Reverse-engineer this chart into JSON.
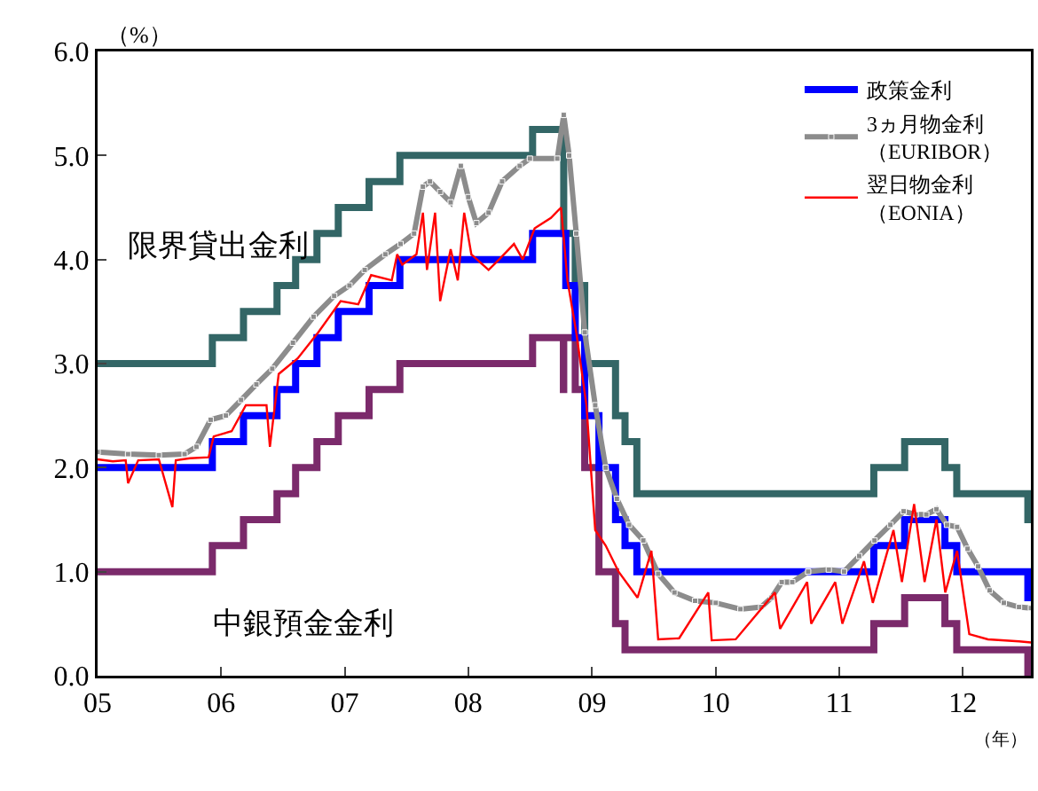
{
  "chart_data": {
    "type": "line",
    "ylabel": "（%）",
    "xlabel": "（年）",
    "xlim": [
      "2005-01-01",
      "2012-07-20"
    ],
    "xticks": [
      {
        "value": "2005-01-01",
        "label": "05"
      },
      {
        "value": "2006-01-01",
        "label": "06"
      },
      {
        "value": "2007-01-01",
        "label": "07"
      },
      {
        "value": "2008-01-01",
        "label": "08"
      },
      {
        "value": "2009-01-01",
        "label": "09"
      },
      {
        "value": "2010-01-01",
        "label": "10"
      },
      {
        "value": "2011-01-01",
        "label": "11"
      },
      {
        "value": "2012-01-01",
        "label": "12"
      }
    ],
    "ylim": [
      0,
      6
    ],
    "yticks": [
      {
        "value": 0,
        "label": "0.0"
      },
      {
        "value": 1,
        "label": "1.0"
      },
      {
        "value": 2,
        "label": "2.0"
      },
      {
        "value": 3,
        "label": "3.0"
      },
      {
        "value": 4,
        "label": "4.0"
      },
      {
        "value": 5,
        "label": "5.0"
      },
      {
        "value": 6,
        "label": "6.0"
      }
    ],
    "grid": false,
    "legend": "top right",
    "line_style": "solid",
    "series": [
      {
        "name": "政策金利",
        "type": "step",
        "color": "#0000ff",
        "x": [
          "2005-01-01",
          "2005-12-06",
          "2006-03-08",
          "2006-06-15",
          "2006-08-09",
          "2006-10-11",
          "2006-12-13",
          "2007-03-14",
          "2007-06-13",
          "2008-07-09",
          "2008-10-15",
          "2008-11-12",
          "2008-12-10",
          "2009-01-21",
          "2009-03-11",
          "2009-04-08",
          "2009-05-13",
          "2011-04-13",
          "2011-07-13",
          "2011-11-09",
          "2011-12-14",
          "2012-07-11",
          "2012-07-20"
        ],
        "values": [
          2.0,
          2.25,
          2.5,
          2.75,
          3.0,
          3.25,
          3.5,
          3.75,
          4.0,
          4.25,
          3.75,
          3.25,
          2.5,
          2.0,
          1.5,
          1.25,
          1.0,
          1.25,
          1.5,
          1.25,
          1.0,
          0.75,
          0.75
        ]
      },
      {
        "name": "3ヵ月物金利（EURIBOR）",
        "type": "line",
        "marker": "square",
        "color": "#8c8c8c",
        "x": [
          "2005-01-01",
          "2005-04-01",
          "2005-07-01",
          "2005-09-15",
          "2005-10-20",
          "2005-12-01",
          "2006-01-15",
          "2006-03-01",
          "2006-04-15",
          "2006-06-01",
          "2006-08-01",
          "2006-10-01",
          "2006-12-01",
          "2007-01-15",
          "2007-03-01",
          "2007-05-01",
          "2007-06-15",
          "2007-07-25",
          "2007-08-20",
          "2007-09-10",
          "2007-10-10",
          "2007-11-10",
          "2007-12-10",
          "2008-01-01",
          "2008-01-25",
          "2008-03-01",
          "2008-04-10",
          "2008-06-01",
          "2008-07-01",
          "2008-09-20",
          "2008-10-09",
          "2008-10-25",
          "2008-11-15",
          "2008-12-10",
          "2009-01-10",
          "2009-02-10",
          "2009-03-15",
          "2009-04-20",
          "2009-06-01",
          "2009-07-15",
          "2009-09-01",
          "2009-11-01",
          "2010-01-01",
          "2010-03-15",
          "2010-05-15",
          "2010-06-15",
          "2010-07-15",
          "2010-08-15",
          "2010-10-01",
          "2010-12-01",
          "2011-01-15",
          "2011-03-01",
          "2011-04-15",
          "2011-06-01",
          "2011-07-10",
          "2011-08-15",
          "2011-09-15",
          "2011-10-15",
          "2011-11-15",
          "2011-12-15",
          "2012-01-15",
          "2012-02-15",
          "2012-03-20",
          "2012-05-01",
          "2012-06-15",
          "2012-07-20"
        ],
        "values": [
          2.15,
          2.13,
          2.12,
          2.13,
          2.2,
          2.46,
          2.5,
          2.65,
          2.8,
          2.95,
          3.2,
          3.45,
          3.65,
          3.75,
          3.9,
          4.05,
          4.15,
          4.25,
          4.7,
          4.75,
          4.65,
          4.55,
          4.9,
          4.6,
          4.35,
          4.45,
          4.75,
          4.9,
          4.97,
          4.97,
          5.39,
          5.0,
          4.25,
          3.3,
          2.6,
          2.0,
          1.7,
          1.45,
          1.3,
          0.98,
          0.8,
          0.72,
          0.7,
          0.64,
          0.66,
          0.75,
          0.9,
          0.9,
          1.0,
          1.02,
          1.0,
          1.15,
          1.3,
          1.45,
          1.58,
          1.55,
          1.55,
          1.6,
          1.45,
          1.43,
          1.22,
          1.05,
          0.82,
          0.7,
          0.66,
          0.65
        ]
      },
      {
        "name": "翌日物金利（EONIA）",
        "type": "line",
        "color": "#ff0000",
        "x": [
          "2005-01-01",
          "2005-02-15",
          "2005-03-25",
          "2005-04-01",
          "2005-05-01",
          "2005-07-01",
          "2005-08-10",
          "2005-08-20",
          "2005-10-01",
          "2005-11-25",
          "2005-12-10",
          "2006-02-01",
          "2006-03-15",
          "2006-05-15",
          "2006-05-25",
          "2006-06-20",
          "2006-08-15",
          "2006-10-15",
          "2006-12-20",
          "2007-02-10",
          "2007-03-20",
          "2007-05-20",
          "2007-06-05",
          "2007-06-20",
          "2007-08-01",
          "2007-08-20",
          "2007-09-01",
          "2007-09-25",
          "2007-10-10",
          "2007-11-10",
          "2007-12-01",
          "2007-12-20",
          "2008-01-10",
          "2008-03-01",
          "2008-04-01",
          "2008-05-15",
          "2008-06-10",
          "2008-07-15",
          "2008-09-01",
          "2008-10-01",
          "2008-10-20",
          "2008-11-15",
          "2008-12-15",
          "2009-01-10",
          "2009-02-10",
          "2009-03-20",
          "2009-05-15",
          "2009-06-25",
          "2009-07-15",
          "2009-09-15",
          "2009-12-10",
          "2009-12-20",
          "2010-03-01",
          "2010-06-25",
          "2010-07-10",
          "2010-09-28",
          "2010-10-10",
          "2010-12-20",
          "2011-01-10",
          "2011-03-15",
          "2011-04-10",
          "2011-06-10",
          "2011-07-05",
          "2011-08-10",
          "2011-09-10",
          "2011-10-15",
          "2011-11-10",
          "2011-12-15",
          "2012-01-20",
          "2012-03-15",
          "2012-06-15",
          "2012-07-20"
        ],
        "values": [
          2.08,
          2.06,
          2.07,
          1.85,
          2.07,
          2.08,
          1.62,
          2.07,
          2.09,
          2.1,
          2.3,
          2.35,
          2.6,
          2.6,
          2.2,
          2.9,
          3.05,
          3.3,
          3.6,
          3.57,
          3.85,
          3.8,
          4.05,
          3.95,
          4.05,
          4.45,
          3.9,
          4.45,
          3.6,
          4.1,
          3.8,
          4.45,
          4.05,
          3.9,
          4.0,
          4.15,
          4.0,
          4.3,
          4.4,
          4.5,
          3.8,
          3.3,
          2.6,
          1.4,
          1.25,
          1.0,
          0.75,
          1.2,
          0.35,
          0.36,
          0.8,
          0.34,
          0.35,
          0.8,
          0.45,
          0.9,
          0.5,
          0.9,
          0.5,
          1.1,
          0.7,
          1.4,
          0.9,
          1.65,
          0.9,
          1.5,
          0.8,
          1.2,
          0.4,
          0.35,
          0.33,
          0.32
        ]
      },
      {
        "type": "step",
        "color": "#336666",
        "x": [
          "2005-01-01",
          "2005-12-06",
          "2006-03-08",
          "2006-06-15",
          "2006-08-09",
          "2006-10-11",
          "2006-12-13",
          "2007-03-14",
          "2007-06-13",
          "2008-07-09",
          "2008-10-09",
          "2008-11-12",
          "2008-12-10",
          "2009-03-11",
          "2009-04-08",
          "2009-05-13",
          "2011-04-13",
          "2011-07-13",
          "2011-11-09",
          "2011-12-14",
          "2012-07-11",
          "2012-07-20"
        ],
        "values": [
          3.0,
          3.25,
          3.5,
          3.75,
          4.0,
          4.25,
          4.5,
          4.75,
          5.0,
          5.25,
          4.25,
          3.75,
          3.0,
          2.5,
          2.25,
          1.75,
          2.0,
          2.25,
          2.0,
          1.75,
          1.5,
          1.5
        ]
      },
      {
        "type": "step",
        "color": "#7b2a6b",
        "x": [
          "2005-01-01",
          "2005-12-06",
          "2006-03-08",
          "2006-06-15",
          "2006-08-09",
          "2006-10-11",
          "2006-12-13",
          "2007-03-14",
          "2007-06-13",
          "2008-07-09",
          "2008-10-08",
          "2008-10-09",
          "2008-11-12",
          "2008-12-10",
          "2009-01-21",
          "2009-03-11",
          "2009-04-08",
          "2011-04-13",
          "2011-07-13",
          "2011-11-09",
          "2011-12-14",
          "2012-07-11",
          "2012-07-20"
        ],
        "values": [
          1.0,
          1.25,
          1.5,
          1.75,
          2.0,
          2.25,
          2.5,
          2.75,
          3.0,
          3.25,
          2.75,
          3.25,
          2.75,
          2.0,
          1.0,
          0.5,
          0.25,
          0.5,
          0.75,
          0.5,
          0.25,
          0.0,
          0.0
        ]
      }
    ],
    "annotations": [
      "限界貸出金利",
      "中銀預金金利"
    ]
  }
}
